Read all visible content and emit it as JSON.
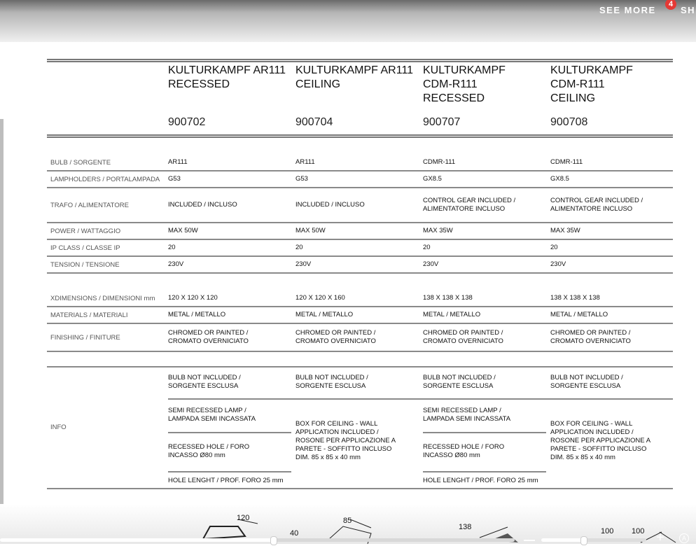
{
  "nav": {
    "see_more": "SEE MORE",
    "badge_count": "4",
    "share_partial": "SH"
  },
  "products": [
    {
      "name": "KULTURKAMPF AR111 RECESSED",
      "lines": [
        "KULTURKAMPF AR111",
        "RECESSED"
      ],
      "code": "900702"
    },
    {
      "name": "KULTURKAMPF AR111 CEILING",
      "lines": [
        "KULTURKAMPF AR111",
        "CEILING"
      ],
      "code": "900704"
    },
    {
      "name": "KULTURKAMPF CDM-R111 RECESSED",
      "lines": [
        "KULTURKAMPF",
        "CDM-R111",
        "RECESSED"
      ],
      "code": "900707"
    },
    {
      "name": "KULTURKAMPF CDM-R111 CEILING",
      "lines": [
        "KULTURKAMPF",
        "CDM-R111",
        "CEILING"
      ],
      "code": "900708"
    }
  ],
  "rows": [
    {
      "label": "BULB / SORGENTE",
      "values": [
        "AR111",
        "AR111",
        "CDMR-111",
        "CDMR-111"
      ]
    },
    {
      "label": "LAMPHOLDERS / PORTALAMPADA",
      "values": [
        "G53",
        "G53",
        "GX8.5",
        "GX8.5"
      ]
    },
    {
      "label": "TRAFO / ALIMENTATORE",
      "values": [
        "INCLUDED / INCLUSO",
        "INCLUDED / INCLUSO",
        "CONTROL GEAR INCLUDED / ALIMENTATORE INCLUSO",
        "CONTROL GEAR INCLUDED / ALIMENTATORE INCLUSO"
      ]
    },
    {
      "label": "POWER / WATTAGGIO",
      "values": [
        "MAX 50W",
        "MAX 50W",
        "MAX 35W",
        "MAX 35W"
      ]
    },
    {
      "label": "IP CLASS / CLASSE IP",
      "values": [
        "20",
        "20",
        "20",
        "20"
      ]
    },
    {
      "label": "TENSION / TENSIONE",
      "values": [
        "230V",
        "230V",
        "230V",
        "230V"
      ]
    },
    {
      "label": "XDIMENSIONS / DIMENSIONI mm",
      "values": [
        "120 X 120 X 120",
        "120 X 120 X 160",
        "138 X 138 X 138",
        "138 X 138 X 138"
      ]
    },
    {
      "label": "MATERIALS / MATERIALI",
      "values": [
        "METAL / METALLO",
        "METAL / METALLO",
        "METAL / METALLO",
        "METAL / METALLO"
      ]
    },
    {
      "label": "FINISHING / FINITURE",
      "values": [
        "CHROMED OR PAINTED / CROMATO OVERNICIATO",
        "CHROMED OR PAINTED / CROMATO OVERNICIATO",
        "CHROMED OR PAINTED / CROMATO OVERNICIATO",
        "CHROMED OR PAINTED / CROMATO OVERNICIATO"
      ]
    }
  ],
  "info": {
    "label": "INFO",
    "bulb": "BULB NOT INCLUDED / SORGENTE ESCLUSA",
    "semi": "SEMI RECESSED LAMP / LAMPADA SEMI INCASSATA",
    "hole": "RECESSED HOLE / FORO INCASSO Ø80 mm",
    "hole_length": "HOLE LENGHT / PROF. FORO 25 mm",
    "box": "BOX FOR CEILING - WALL APPLICATION INCLUDED / ROSONE PER APPLICAZIONE A PARETE - SOFFITTO INCLUSO DIM. 85 x 85 x 40 mm"
  },
  "drawings": {
    "dims": [
      "120",
      "85",
      "40",
      "138",
      "100",
      "100"
    ]
  },
  "viewer": {
    "zoom_level": 0.4,
    "progress": 0.53
  }
}
